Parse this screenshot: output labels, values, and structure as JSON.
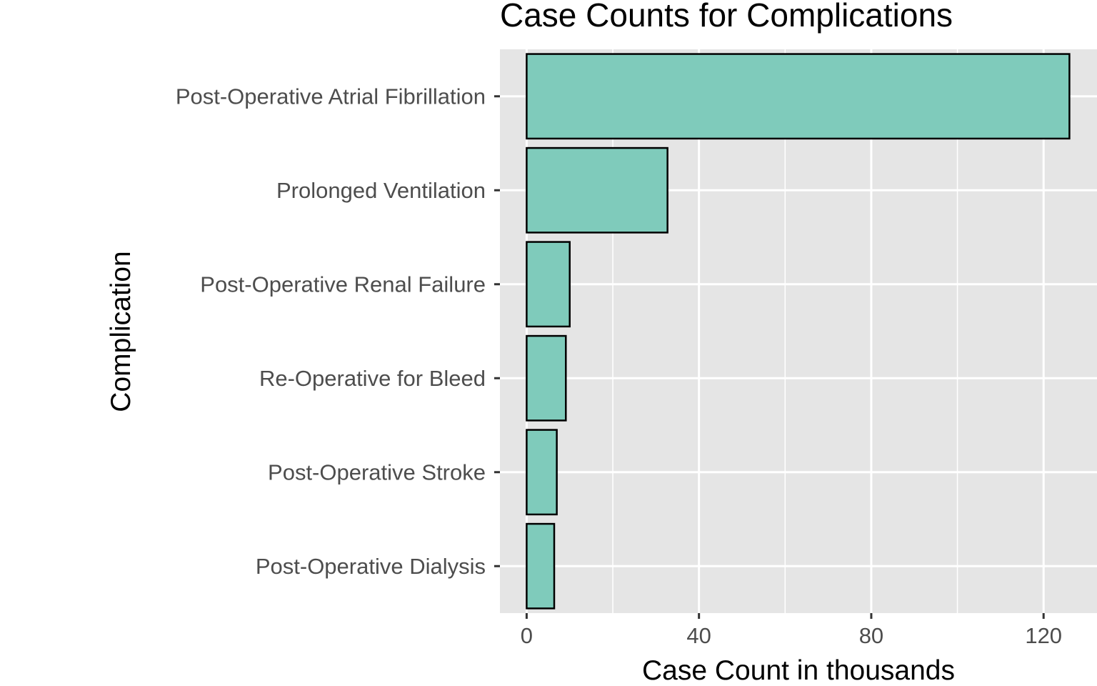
{
  "chart_data": {
    "type": "bar",
    "orientation": "horizontal",
    "title": "Case Counts for Complications",
    "xlabel": "Case Count in thousands",
    "ylabel": "Complication",
    "categories": [
      "Post-Operative Atrial Fibrillation",
      "Prolonged Ventilation",
      "Post-Operative Renal Failure",
      "Re-Operative for Bleed",
      "Post-Operative Stroke",
      "Post-Operative Dialysis"
    ],
    "values": [
      126,
      32.7,
      10,
      9.1,
      7,
      6.4
    ],
    "xlim": [
      -6.2,
      132.4
    ],
    "x_ticks": [
      0,
      40,
      80,
      120
    ],
    "x_tick_labels": [
      "0",
      "40",
      "80",
      "120"
    ],
    "grid": true,
    "legend": "none",
    "colors": {
      "bar_fill": "#7fcbbb",
      "bar_outline": "#000000",
      "panel_background": "#e5e5e5",
      "grid": "#ffffff"
    }
  }
}
